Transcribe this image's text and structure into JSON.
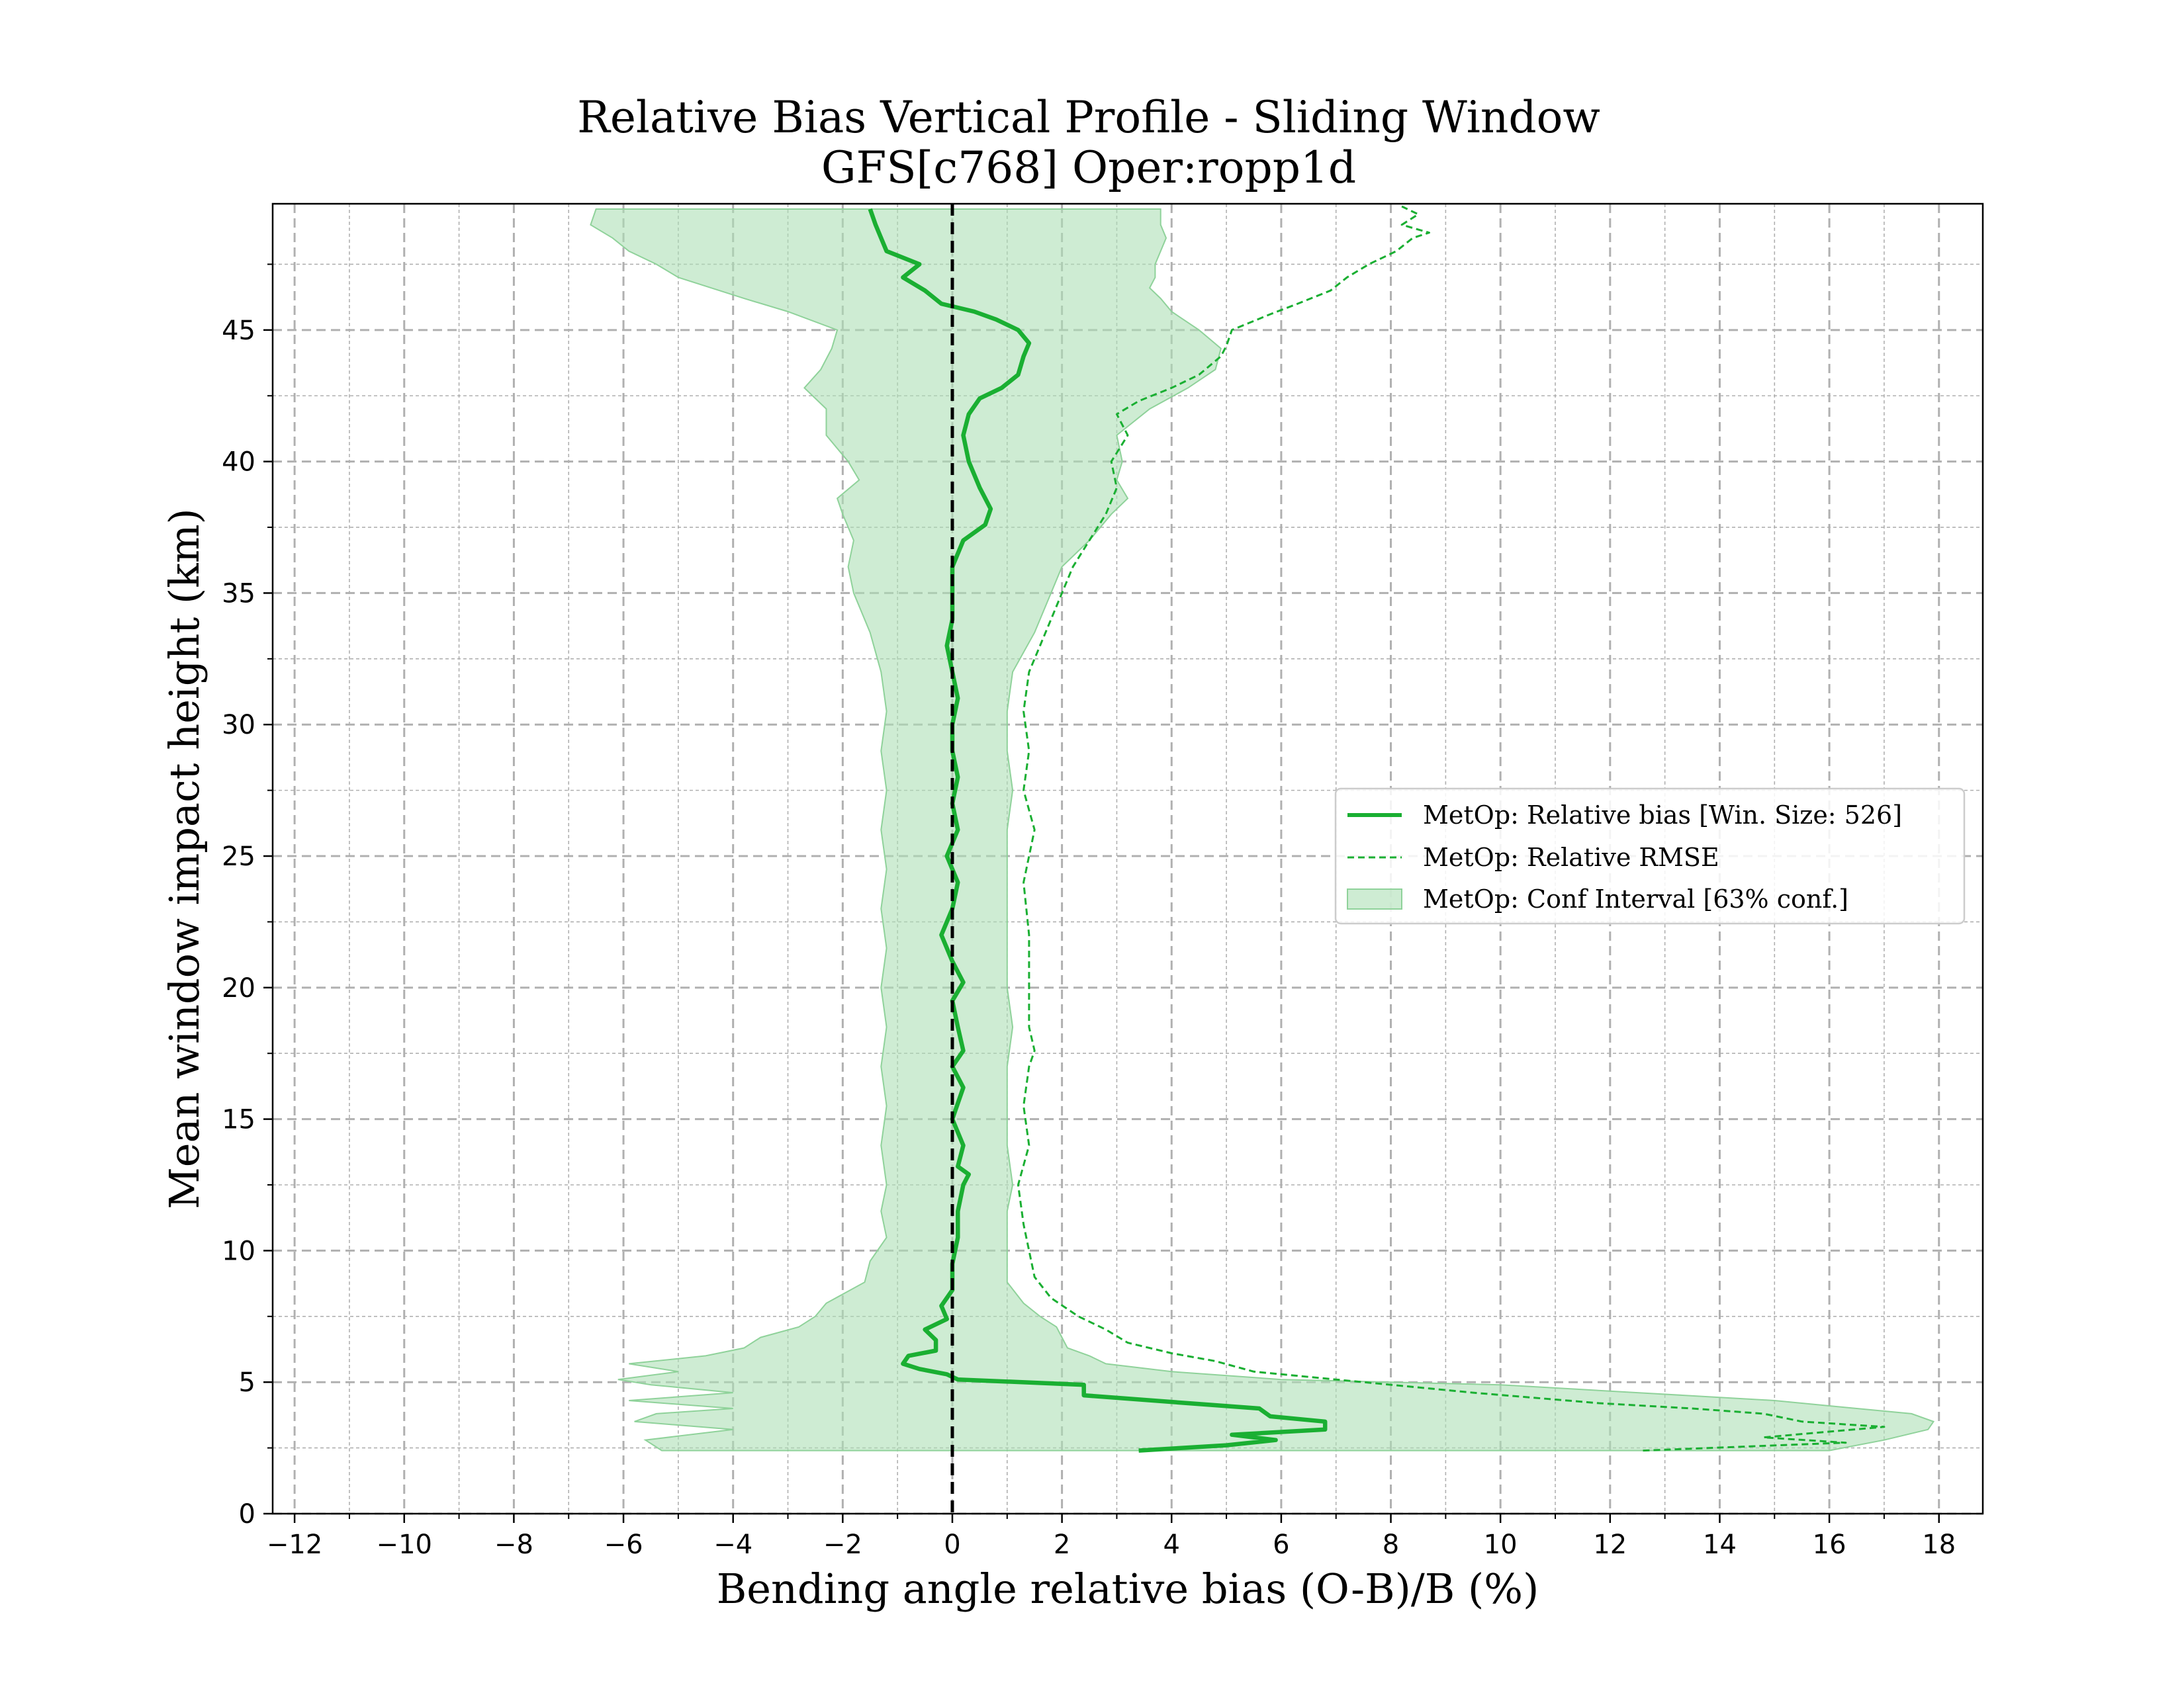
{
  "chart_data": {
    "type": "line",
    "title": "Relative Bias Vertical Profile - Sliding Window",
    "subtitle": "GFS[c768] Oper:ropp1d",
    "xlabel": "Bending angle relative bias (O-B)/B (%)",
    "ylabel": "Mean window impact height (km)",
    "xlim": [
      -12.4,
      18.8
    ],
    "ylim": [
      0,
      49.8
    ],
    "xticks": [
      "−12",
      "−10",
      "−8",
      "−6",
      "−4",
      "−2",
      "0",
      "2",
      "4",
      "6",
      "8",
      "10",
      "12",
      "14",
      "16",
      "18"
    ],
    "xtick_values": [
      -12,
      -10,
      -8,
      -6,
      -4,
      -2,
      0,
      2,
      4,
      6,
      8,
      10,
      12,
      14,
      16,
      18
    ],
    "yticks": [
      "0",
      "5",
      "10",
      "15",
      "20",
      "25",
      "30",
      "35",
      "40",
      "45"
    ],
    "ytick_values": [
      0,
      5,
      10,
      15,
      20,
      25,
      30,
      35,
      40,
      45
    ],
    "grid": true,
    "legend_position": "center-right",
    "reference_line_x": 0,
    "colors": {
      "series": "#1aaf32",
      "fill": "#aee0b5",
      "reference": "#000000",
      "grid": "#b0b0b0"
    },
    "series": [
      {
        "name": "MetOp: Relative bias [Win. Size: 526]",
        "style": "solid",
        "points": [
          [
            3.4,
            2.4
          ],
          [
            5.0,
            2.6
          ],
          [
            5.9,
            2.8
          ],
          [
            5.1,
            3.0
          ],
          [
            6.8,
            3.2
          ],
          [
            6.8,
            3.5
          ],
          [
            5.8,
            3.7
          ],
          [
            5.6,
            4.0
          ],
          [
            4.3,
            4.2
          ],
          [
            2.4,
            4.5
          ],
          [
            2.4,
            4.9
          ],
          [
            0.1,
            5.1
          ],
          [
            -0.1,
            5.3
          ],
          [
            -0.6,
            5.5
          ],
          [
            -0.9,
            5.7
          ],
          [
            -0.8,
            6.0
          ],
          [
            -0.3,
            6.2
          ],
          [
            -0.3,
            6.6
          ],
          [
            -0.5,
            7.0
          ],
          [
            -0.1,
            7.4
          ],
          [
            -0.2,
            7.9
          ],
          [
            0.0,
            8.5
          ],
          [
            0.0,
            9.5
          ],
          [
            0.1,
            10.5
          ],
          [
            0.1,
            11.5
          ],
          [
            0.2,
            12.5
          ],
          [
            0.3,
            12.9
          ],
          [
            0.1,
            13.2
          ],
          [
            0.2,
            14.0
          ],
          [
            0.0,
            15.0
          ],
          [
            0.2,
            16.2
          ],
          [
            0.0,
            17.0
          ],
          [
            0.2,
            17.6
          ],
          [
            0.1,
            18.5
          ],
          [
            0.0,
            19.5
          ],
          [
            0.2,
            20.2
          ],
          [
            0.0,
            21.0
          ],
          [
            -0.2,
            22.0
          ],
          [
            0.0,
            23.0
          ],
          [
            0.1,
            24.0
          ],
          [
            -0.1,
            25.0
          ],
          [
            0.1,
            26.0
          ],
          [
            0.0,
            27.0
          ],
          [
            0.1,
            28.0
          ],
          [
            0.0,
            29.0
          ],
          [
            0.0,
            30.0
          ],
          [
            0.1,
            31.0
          ],
          [
            0.0,
            32.0
          ],
          [
            -0.1,
            33.0
          ],
          [
            0.0,
            34.0
          ],
          [
            0.0,
            35.0
          ],
          [
            0.0,
            36.0
          ],
          [
            0.2,
            37.0
          ],
          [
            0.6,
            37.6
          ],
          [
            0.7,
            38.2
          ],
          [
            0.5,
            39.0
          ],
          [
            0.3,
            40.0
          ],
          [
            0.2,
            41.0
          ],
          [
            0.3,
            41.8
          ],
          [
            0.5,
            42.4
          ],
          [
            0.9,
            42.8
          ],
          [
            1.2,
            43.3
          ],
          [
            1.3,
            44.0
          ],
          [
            1.4,
            44.5
          ],
          [
            1.2,
            45.0
          ],
          [
            0.8,
            45.4
          ],
          [
            0.4,
            45.7
          ],
          [
            -0.2,
            46.0
          ],
          [
            -0.5,
            46.5
          ],
          [
            -0.9,
            47.0
          ],
          [
            -0.6,
            47.5
          ],
          [
            -1.2,
            48.0
          ],
          [
            -1.3,
            48.5
          ],
          [
            -1.4,
            49.0
          ],
          [
            -1.5,
            49.6
          ]
        ]
      },
      {
        "name": "MetOp: Relative RMSE",
        "style": "dashed",
        "points": [
          [
            12.6,
            2.4
          ],
          [
            16.3,
            2.7
          ],
          [
            14.8,
            2.9
          ],
          [
            15.9,
            3.1
          ],
          [
            17.0,
            3.3
          ],
          [
            15.5,
            3.5
          ],
          [
            14.8,
            3.8
          ],
          [
            13.5,
            4.0
          ],
          [
            11.8,
            4.2
          ],
          [
            9.5,
            4.6
          ],
          [
            7.5,
            5.0
          ],
          [
            5.5,
            5.4
          ],
          [
            4.8,
            5.8
          ],
          [
            4.0,
            6.1
          ],
          [
            3.2,
            6.5
          ],
          [
            2.8,
            7.0
          ],
          [
            2.3,
            7.5
          ],
          [
            1.8,
            8.2
          ],
          [
            1.5,
            9.0
          ],
          [
            1.4,
            10.0
          ],
          [
            1.3,
            11.0
          ],
          [
            1.2,
            12.5
          ],
          [
            1.4,
            14.0
          ],
          [
            1.3,
            15.5
          ],
          [
            1.4,
            17.0
          ],
          [
            1.5,
            17.6
          ],
          [
            1.4,
            18.5
          ],
          [
            1.4,
            20.0
          ],
          [
            1.4,
            22.0
          ],
          [
            1.3,
            24.0
          ],
          [
            1.5,
            26.0
          ],
          [
            1.3,
            27.5
          ],
          [
            1.4,
            29.0
          ],
          [
            1.3,
            30.5
          ],
          [
            1.4,
            32.0
          ],
          [
            1.6,
            33.0
          ],
          [
            1.8,
            34.0
          ],
          [
            2.0,
            35.0
          ],
          [
            2.2,
            36.0
          ],
          [
            2.5,
            37.0
          ],
          [
            2.8,
            38.0
          ],
          [
            3.0,
            39.0
          ],
          [
            2.9,
            40.0
          ],
          [
            3.2,
            41.0
          ],
          [
            3.0,
            41.8
          ],
          [
            3.4,
            42.3
          ],
          [
            4.0,
            42.8
          ],
          [
            4.5,
            43.3
          ],
          [
            4.9,
            44.0
          ],
          [
            5.0,
            44.4
          ],
          [
            5.1,
            45.0
          ],
          [
            5.8,
            45.6
          ],
          [
            6.3,
            46.0
          ],
          [
            6.9,
            46.5
          ],
          [
            7.2,
            47.0
          ],
          [
            7.6,
            47.5
          ],
          [
            8.1,
            48.0
          ],
          [
            8.4,
            48.5
          ],
          [
            8.7,
            48.7
          ],
          [
            8.2,
            49.0
          ],
          [
            8.5,
            49.4
          ],
          [
            8.2,
            49.7
          ]
        ]
      }
    ],
    "confidence_interval": {
      "name": "MetOp: Conf Interval [63% conf.]",
      "band": [
        [
          2.4,
          -5.3,
          16.0
        ],
        [
          2.8,
          -5.6,
          17.0
        ],
        [
          3.2,
          -4.0,
          17.8
        ],
        [
          3.5,
          -5.8,
          17.9
        ],
        [
          3.8,
          -5.4,
          17.5
        ],
        [
          4.0,
          -4.0,
          16.5
        ],
        [
          4.3,
          -5.9,
          15.0
        ],
        [
          4.6,
          -4.0,
          12.5
        ],
        [
          4.9,
          -5.5,
          10.0
        ],
        [
          5.1,
          -6.1,
          6.0
        ],
        [
          5.4,
          -5.0,
          4.0
        ],
        [
          5.7,
          -5.9,
          2.8
        ],
        [
          6.0,
          -4.5,
          2.5
        ],
        [
          6.3,
          -3.8,
          2.1
        ],
        [
          6.7,
          -3.5,
          2.0
        ],
        [
          7.1,
          -2.8,
          1.9
        ],
        [
          7.5,
          -2.5,
          1.6
        ],
        [
          8.0,
          -2.3,
          1.3
        ],
        [
          8.8,
          -1.6,
          1.0
        ],
        [
          9.6,
          -1.5,
          1.0
        ],
        [
          10.5,
          -1.2,
          1.0
        ],
        [
          11.5,
          -1.3,
          1.0
        ],
        [
          12.5,
          -1.2,
          1.1
        ],
        [
          14.0,
          -1.3,
          1.0
        ],
        [
          15.5,
          -1.2,
          1.0
        ],
        [
          17.0,
          -1.3,
          1.0
        ],
        [
          18.5,
          -1.2,
          1.1
        ],
        [
          20.0,
          -1.3,
          1.0
        ],
        [
          21.5,
          -1.2,
          1.0
        ],
        [
          23.0,
          -1.3,
          1.0
        ],
        [
          24.5,
          -1.2,
          1.0
        ],
        [
          26.0,
          -1.3,
          1.0
        ],
        [
          27.5,
          -1.2,
          1.1
        ],
        [
          29.0,
          -1.3,
          1.0
        ],
        [
          30.5,
          -1.2,
          1.0
        ],
        [
          32.0,
          -1.3,
          1.1
        ],
        [
          33.5,
          -1.5,
          1.5
        ],
        [
          35.0,
          -1.8,
          1.8
        ],
        [
          36.0,
          -1.9,
          2.0
        ],
        [
          37.0,
          -1.8,
          2.5
        ],
        [
          38.0,
          -2.0,
          2.9
        ],
        [
          38.6,
          -2.1,
          3.2
        ],
        [
          39.3,
          -1.7,
          3.0
        ],
        [
          40.0,
          -1.9,
          3.1
        ],
        [
          41.0,
          -2.3,
          3.0
        ],
        [
          42.0,
          -2.3,
          3.6
        ],
        [
          42.8,
          -2.7,
          4.3
        ],
        [
          43.5,
          -2.4,
          4.8
        ],
        [
          44.3,
          -2.2,
          4.9
        ],
        [
          45.0,
          -2.1,
          4.5
        ],
        [
          45.7,
          -3.0,
          4.0
        ],
        [
          46.2,
          -3.8,
          3.8
        ],
        [
          46.6,
          -4.4,
          3.6
        ],
        [
          47.0,
          -5.0,
          3.7
        ],
        [
          47.5,
          -5.4,
          3.7
        ],
        [
          48.0,
          -5.9,
          3.8
        ],
        [
          48.5,
          -6.2,
          3.9
        ],
        [
          49.0,
          -6.6,
          3.8
        ],
        [
          49.6,
          -6.5,
          3.8
        ]
      ]
    }
  }
}
